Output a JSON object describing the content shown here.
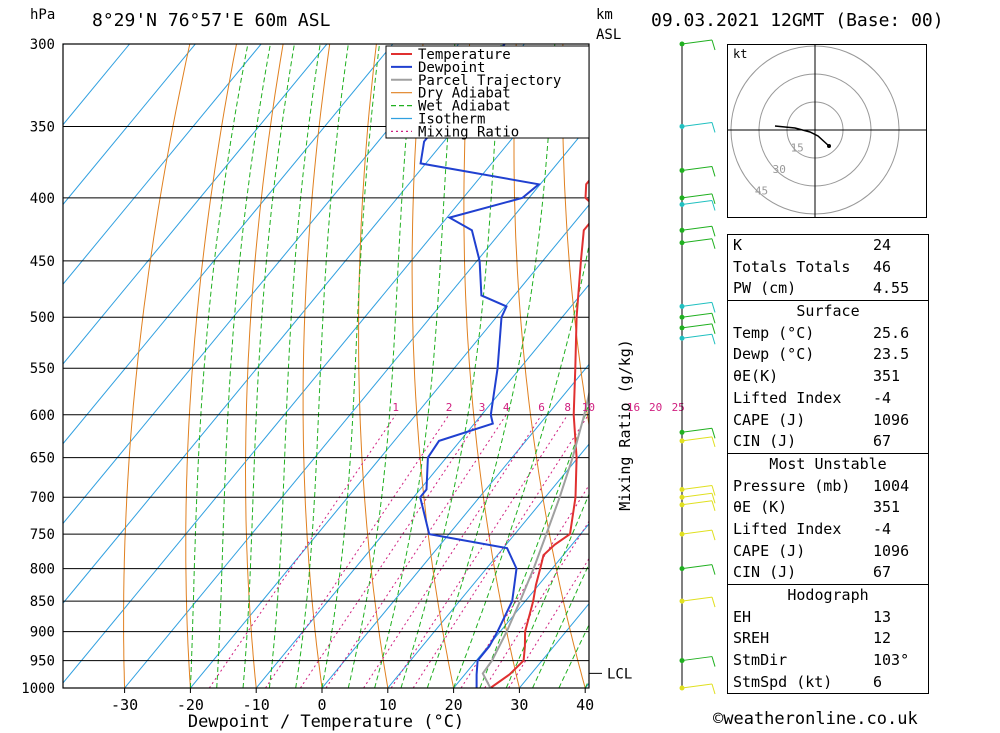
{
  "header": {
    "pressure_unit": "hPa",
    "location": "8°29'N 76°57'E 60m ASL",
    "km_label": "km",
    "asl_label": "ASL",
    "datetime": "09.03.2021 12GMT (Base: 00)"
  },
  "chart_data": {
    "type": "line",
    "chart_kind": "skew-T log-P diagram",
    "xlabel": "Dewpoint / Temperature (°C)",
    "ylabel": "hPa",
    "right_label": "Mixing Ratio (g/kg)",
    "x_ticks": [
      "-30",
      "-20",
      "-10",
      "0",
      "10",
      "20",
      "30",
      "40"
    ],
    "y_ticks": [
      "300",
      "350",
      "400",
      "450",
      "500",
      "550",
      "600",
      "650",
      "700",
      "750",
      "800",
      "850",
      "900",
      "950",
      "1000"
    ],
    "mixing_ratio_labels": [
      "1",
      "2",
      "3",
      "4",
      "6",
      "8",
      "10",
      "16",
      "20",
      "25"
    ],
    "lcl_label": "LCL",
    "lcl_pressure": 973,
    "legend": [
      "Temperature",
      "Dewpoint",
      "Parcel Trajectory",
      "Dry Adiabat",
      "Wet Adiabat",
      "Isotherm",
      "Mixing Ratio"
    ],
    "colors": {
      "temperature": "#e03030",
      "dewpoint": "#2040d0",
      "parcel": "#a0a0a0",
      "dry_adiabat": "#e08020",
      "wet_adiabat": "#20b020",
      "isotherm": "#30a0e0",
      "mixing_ratio": "#d02080"
    },
    "series": [
      {
        "name": "Temperature",
        "points": [
          [
            1000,
            25.6
          ],
          [
            975,
            26.8
          ],
          [
            950,
            27.2
          ],
          [
            925,
            25.6
          ],
          [
            900,
            23.8
          ],
          [
            850,
            21.2
          ],
          [
            825,
            19.6
          ],
          [
            800,
            18.2
          ],
          [
            780,
            17.0
          ],
          [
            765,
            17.4
          ],
          [
            750,
            18.4
          ],
          [
            700,
            14.6
          ],
          [
            650,
            9.8
          ],
          [
            600,
            4.0
          ],
          [
            550,
            -1.6
          ],
          [
            500,
            -7.8
          ],
          [
            450,
            -14.2
          ],
          [
            425,
            -17.6
          ],
          [
            410,
            -17.6
          ],
          [
            400,
            -21.4
          ],
          [
            390,
            -23.0
          ],
          [
            380,
            -23.0
          ],
          [
            370,
            -23.6
          ],
          [
            300,
            -36.2
          ]
        ]
      },
      {
        "name": "Dewpoint",
        "points": [
          [
            1000,
            23.5
          ],
          [
            975,
            21.8
          ],
          [
            950,
            20.2
          ],
          [
            925,
            20.2
          ],
          [
            900,
            19.6
          ],
          [
            850,
            18.0
          ],
          [
            800,
            14.6
          ],
          [
            770,
            10.6
          ],
          [
            750,
            -3.0
          ],
          [
            700,
            -9.0
          ],
          [
            690,
            -9.0
          ],
          [
            650,
            -12.8
          ],
          [
            630,
            -13.2
          ],
          [
            610,
            -7.2
          ],
          [
            600,
            -8.6
          ],
          [
            550,
            -13.4
          ],
          [
            500,
            -19.2
          ],
          [
            490,
            -19.8
          ],
          [
            480,
            -25.0
          ],
          [
            450,
            -29.6
          ],
          [
            425,
            -34.6
          ],
          [
            415,
            -39.6
          ],
          [
            400,
            -31.0
          ],
          [
            390,
            -30.2
          ],
          [
            375,
            -50.8
          ],
          [
            360,
            -53.0
          ],
          [
            300,
            -53.0
          ]
        ]
      },
      {
        "name": "Parcel Trajectory",
        "points": [
          [
            1000,
            25.6
          ],
          [
            973,
            22.6
          ],
          [
            950,
            22.4
          ],
          [
            900,
            21.0
          ],
          [
            850,
            19.2
          ],
          [
            800,
            17.2
          ],
          [
            750,
            14.8
          ],
          [
            700,
            12.2
          ],
          [
            650,
            9.2
          ],
          [
            600,
            5.6
          ],
          [
            550,
            1.4
          ],
          [
            500,
            -3.6
          ],
          [
            450,
            -9.6
          ],
          [
            400,
            -17.6
          ],
          [
            370,
            -23.0
          ]
        ]
      }
    ],
    "hodograph": {
      "unit_label": "kt",
      "ring_labels": [
        "15",
        "30",
        "45"
      ]
    },
    "wind_profile_colors": [
      "#20b020",
      "#20c0c0",
      "#e0e020"
    ]
  },
  "indices": {
    "rows": [
      {
        "k": "K",
        "v": "24"
      },
      {
        "k": "Totals Totals",
        "v": "46"
      },
      {
        "k": "PW (cm)",
        "v": "4.55"
      }
    ],
    "surface": {
      "title": "Surface",
      "rows": [
        {
          "k": "Temp (°C)",
          "v": "25.6"
        },
        {
          "k": "Dewp (°C)",
          "v": "23.5"
        },
        {
          "k": "θE(K)",
          "v": "351"
        },
        {
          "k": "Lifted Index",
          "v": "-4"
        },
        {
          "k": "CAPE (J)",
          "v": "1096"
        },
        {
          "k": "CIN (J)",
          "v": "67"
        }
      ]
    },
    "most_unstable": {
      "title": "Most Unstable",
      "rows": [
        {
          "k": "Pressure (mb)",
          "v": "1004"
        },
        {
          "k": "θE (K)",
          "v": "351"
        },
        {
          "k": "Lifted Index",
          "v": "-4"
        },
        {
          "k": "CAPE (J)",
          "v": "1096"
        },
        {
          "k": "CIN (J)",
          "v": "67"
        }
      ]
    },
    "hodograph": {
      "title": "Hodograph",
      "rows": [
        {
          "k": "EH",
          "v": "13"
        },
        {
          "k": "SREH",
          "v": "12"
        },
        {
          "k": "StmDir",
          "v": "103°"
        },
        {
          "k": "StmSpd (kt)",
          "v": "6"
        }
      ]
    }
  },
  "footer": {
    "credit": "©weatheronline.co.uk"
  }
}
